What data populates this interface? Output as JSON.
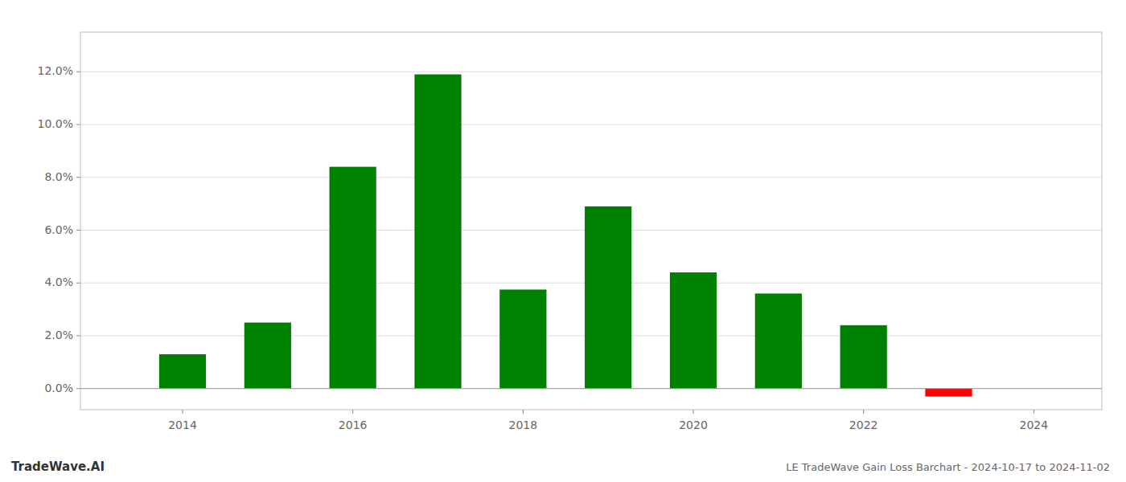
{
  "chart_data": {
    "type": "bar",
    "title": "LE TradeWave Gain Loss Barchart - 2024-10-17 to 2024-11-02",
    "annotations": [
      "TradeWave.AI"
    ],
    "x": [
      2014,
      2015,
      2016,
      2017,
      2018,
      2019,
      2020,
      2021,
      2022,
      2023
    ],
    "values": [
      0.013,
      0.025,
      0.084,
      0.119,
      0.0375,
      0.069,
      0.044,
      0.036,
      0.024,
      -0.003
    ],
    "colors": [
      "#008000",
      "#008000",
      "#008000",
      "#008000",
      "#008000",
      "#008000",
      "#008000",
      "#008000",
      "#008000",
      "#ff0000"
    ],
    "xlim": [
      2012.8,
      2024.8
    ],
    "xticks": [
      2014,
      2016,
      2018,
      2020,
      2022,
      2024
    ],
    "ylim": [
      -0.008,
      0.135
    ],
    "yticks": [
      {
        "value": 0.0,
        "label": "0.0%"
      },
      {
        "value": 0.02,
        "label": "2.0%"
      },
      {
        "value": 0.04,
        "label": "4.0%"
      },
      {
        "value": 0.06,
        "label": "6.0%"
      },
      {
        "value": 0.08,
        "label": "8.0%"
      },
      {
        "value": 0.1,
        "label": "10.0%"
      },
      {
        "value": 0.12,
        "label": "12.0%"
      }
    ],
    "grid": true
  }
}
